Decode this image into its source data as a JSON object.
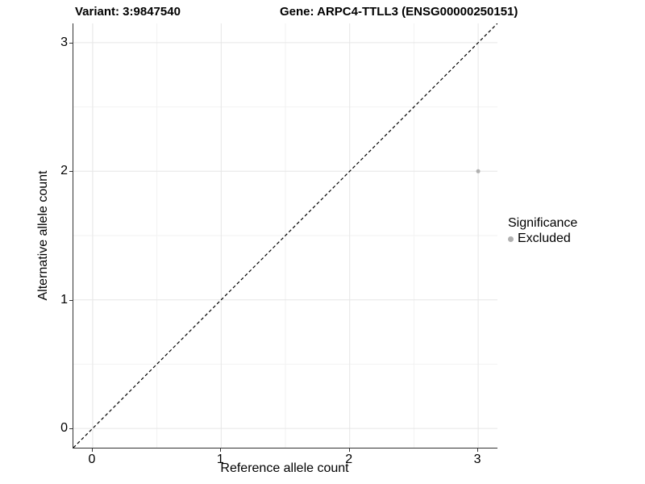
{
  "chart_data": {
    "type": "scatter",
    "title_left": "Variant: 3:9847540",
    "title_right": "Gene: ARPC4-TTLL3 (ENSG00000250151)",
    "xlabel": "Reference allele count",
    "ylabel": "Alternative allele count",
    "xlim": [
      -0.15,
      3.15
    ],
    "ylim": [
      -0.15,
      3.15
    ],
    "x_ticks": [
      0,
      1,
      2,
      3
    ],
    "y_ticks": [
      0,
      1,
      2,
      3
    ],
    "x_minor_ticks": [
      0.5,
      1.5,
      2.5
    ],
    "y_minor_ticks": [
      0.5,
      1.5,
      2.5
    ],
    "grid": "major and minor gridlines on white panel",
    "reference_line": {
      "kind": "identity y=x",
      "style": "dashed",
      "color": "#000000"
    },
    "series": [
      {
        "name": "Excluded",
        "color": "#b0b0b0",
        "point_radius": 2.5,
        "points": [
          {
            "x": 3,
            "y": 2
          }
        ]
      }
    ],
    "legend": {
      "position": "right",
      "title": "Significance",
      "entries": [
        {
          "label": "Excluded",
          "color": "#b0b0b0"
        }
      ]
    }
  },
  "colors": {
    "background": "#ffffff",
    "grid_major": "#e6e6e6",
    "grid_minor": "#f2f2f2",
    "axis_line": "#333333",
    "text": "#000000",
    "excluded_point": "#b0b0b0"
  }
}
